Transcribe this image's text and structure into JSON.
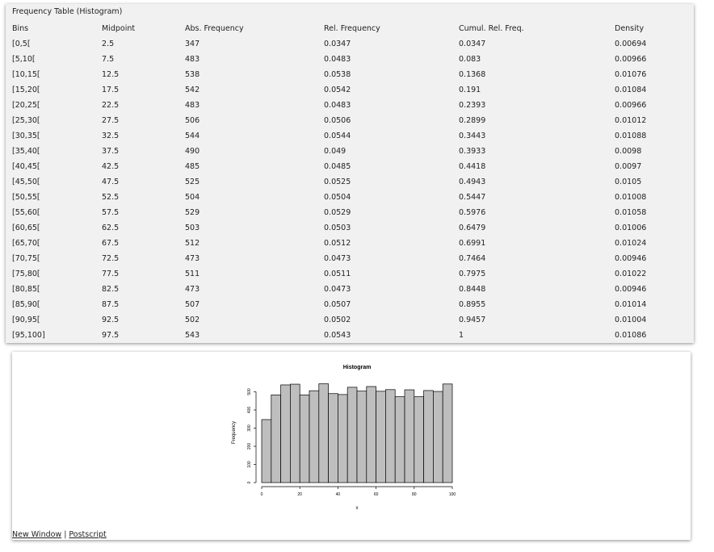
{
  "table": {
    "caption": "Frequency Table (Histogram)",
    "headers": [
      "Bins",
      "Midpoint",
      "Abs. Frequency",
      "Rel. Frequency",
      "Cumul. Rel. Freq.",
      "Density"
    ],
    "rows": [
      [
        "[0,5[",
        "2.5",
        "347",
        "0.0347",
        "0.0347",
        "0.00694"
      ],
      [
        "[5,10[",
        "7.5",
        "483",
        "0.0483",
        "0.083",
        "0.00966"
      ],
      [
        "[10,15[",
        "12.5",
        "538",
        "0.0538",
        "0.1368",
        "0.01076"
      ],
      [
        "[15,20[",
        "17.5",
        "542",
        "0.0542",
        "0.191",
        "0.01084"
      ],
      [
        "[20,25[",
        "22.5",
        "483",
        "0.0483",
        "0.2393",
        "0.00966"
      ],
      [
        "[25,30[",
        "27.5",
        "506",
        "0.0506",
        "0.2899",
        "0.01012"
      ],
      [
        "[30,35[",
        "32.5",
        "544",
        "0.0544",
        "0.3443",
        "0.01088"
      ],
      [
        "[35,40[",
        "37.5",
        "490",
        "0.049",
        "0.3933",
        "0.0098"
      ],
      [
        "[40,45[",
        "42.5",
        "485",
        "0.0485",
        "0.4418",
        "0.0097"
      ],
      [
        "[45,50[",
        "47.5",
        "525",
        "0.0525",
        "0.4943",
        "0.0105"
      ],
      [
        "[50,55[",
        "52.5",
        "504",
        "0.0504",
        "0.5447",
        "0.01008"
      ],
      [
        "[55,60[",
        "57.5",
        "529",
        "0.0529",
        "0.5976",
        "0.01058"
      ],
      [
        "[60,65[",
        "62.5",
        "503",
        "0.0503",
        "0.6479",
        "0.01006"
      ],
      [
        "[65,70[",
        "67.5",
        "512",
        "0.0512",
        "0.6991",
        "0.01024"
      ],
      [
        "[70,75[",
        "72.5",
        "473",
        "0.0473",
        "0.7464",
        "0.00946"
      ],
      [
        "[75,80[",
        "77.5",
        "511",
        "0.0511",
        "0.7975",
        "0.01022"
      ],
      [
        "[80,85[",
        "82.5",
        "473",
        "0.0473",
        "0.8448",
        "0.00946"
      ],
      [
        "[85,90[",
        "87.5",
        "507",
        "0.0507",
        "0.8955",
        "0.01014"
      ],
      [
        "[90,95[",
        "92.5",
        "502",
        "0.0502",
        "0.9457",
        "0.01004"
      ],
      [
        "[95,100]",
        "97.5",
        "543",
        "0.0543",
        "1",
        "0.01086"
      ]
    ]
  },
  "chart_data": {
    "type": "bar",
    "title": "Histogram",
    "xlabel": "x",
    "ylabel": "Frequency",
    "bin_edges": [
      0,
      5,
      10,
      15,
      20,
      25,
      30,
      35,
      40,
      45,
      50,
      55,
      60,
      65,
      70,
      75,
      80,
      85,
      90,
      95,
      100
    ],
    "values": [
      347,
      483,
      538,
      542,
      483,
      506,
      544,
      490,
      485,
      525,
      504,
      529,
      503,
      512,
      473,
      511,
      473,
      507,
      502,
      543
    ],
    "xlim": [
      0,
      100
    ],
    "ylim": [
      0,
      560
    ],
    "x_ticks": [
      "0",
      "20",
      "40",
      "60",
      "80",
      "100"
    ],
    "y_ticks": [
      "0",
      "100",
      "200",
      "300",
      "400",
      "500"
    ],
    "bar_color": "#bebebe",
    "grid": false
  },
  "links": {
    "new_window": "New Window",
    "separator": "|",
    "postscript": "Postscript"
  }
}
